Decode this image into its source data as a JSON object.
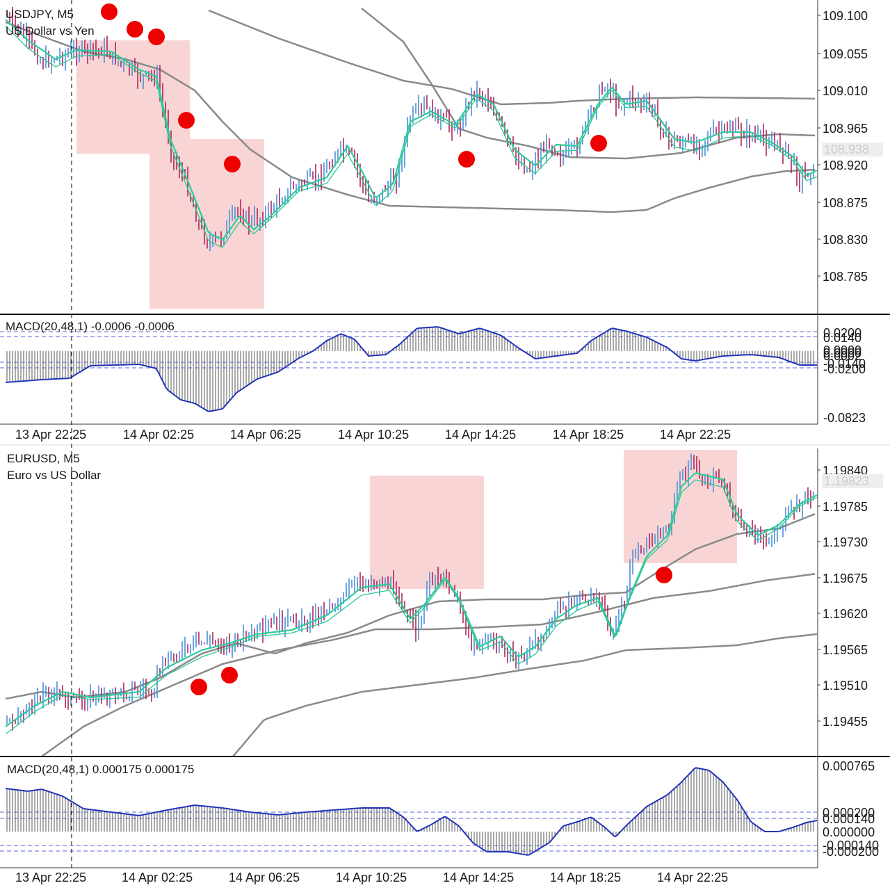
{
  "colors": {
    "bull": "#4a90d9",
    "bear": "#b0245c",
    "ema_fast": "#2ecc9a",
    "ema_slow": "#28c890",
    "ma_long": "#8a8a8a",
    "macd_line": "#2233bb",
    "macd_hist": "#555555",
    "level_dash": "#5566dd",
    "highlight": "#f7c0c0",
    "marker": "#ee0000",
    "price_tag_bg": "#eeeeee"
  },
  "top_chart": {
    "symbol_line": "USDJPY, M5",
    "description": "US Dollar vs Yen",
    "price_ticks": [
      "109.100",
      "109.055",
      "109.010",
      "108.965",
      "108.920",
      "108.875",
      "108.830",
      "108.785"
    ],
    "current_price": "108.938",
    "macd": {
      "title": "MACD(20,48,1) -0.0006 -0.0006",
      "ticks": [
        "0.0200",
        "0.0140",
        "0.0000",
        "0.0000",
        "0.0002",
        "-0.0140",
        "-0.0200",
        "-0.0823"
      ]
    },
    "time_labels": [
      "13 Apr 22:25",
      "14 Apr 02:25",
      "14 Apr 06:25",
      "14 Apr 10:25",
      "14 Apr 14:25",
      "14 Apr 18:25",
      "14 Apr 22:25"
    ]
  },
  "bottom_chart": {
    "symbol_line": "EURUSD, M5",
    "description": "Euro vs US Dollar",
    "price_ticks": [
      "1.19840",
      "1.19785",
      "1.19730",
      "1.19675",
      "1.19620",
      "1.19565",
      "1.19510",
      "1.19455"
    ],
    "current_price": "1.19823",
    "macd": {
      "title": "MACD(20,48,1) 0.000175 0.000175",
      "ticks": [
        "0.000765",
        "0.000200",
        "0.000140",
        "0.000000",
        "-0.000140",
        "-0.000200"
      ]
    },
    "time_labels": [
      "13 Apr 22:25",
      "14 Apr 02:25",
      "14 Apr 06:25",
      "14 Apr 10:25",
      "14 Apr 14:25",
      "14 Apr 18:25",
      "14 Apr 22:25"
    ]
  }
}
